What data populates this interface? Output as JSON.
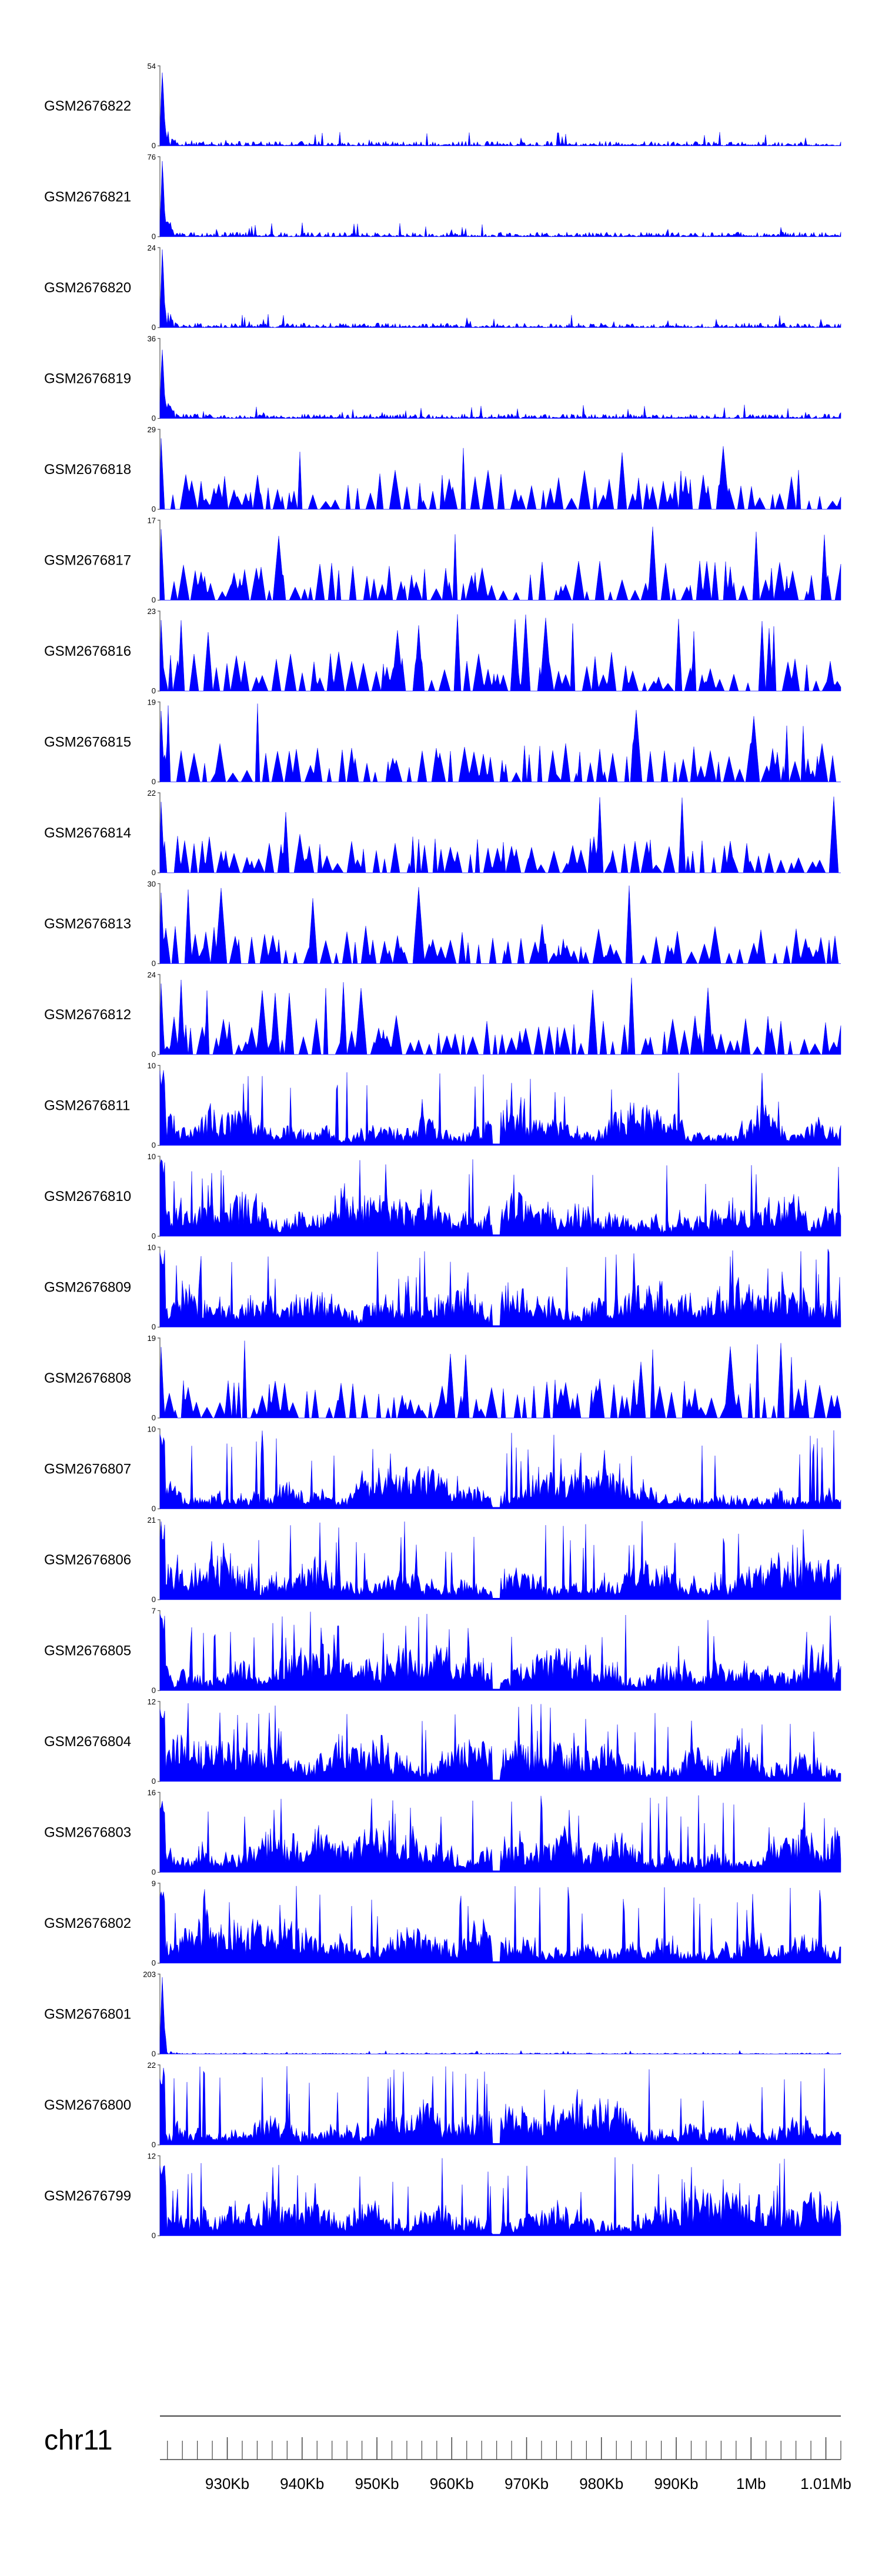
{
  "chart_data": {
    "type": "area",
    "chromosome": "chr11",
    "color": "#0000ff",
    "axis_color": "#444444",
    "x_axis": {
      "range_kb": [
        921,
        1012
      ],
      "major_ticks_kb": [
        930,
        940,
        950,
        960,
        970,
        980,
        990,
        1000,
        1010
      ],
      "tick_labels": [
        "930Kb",
        "940Kb",
        "950Kb",
        "960Kb",
        "970Kb",
        "980Kb",
        "990Kb",
        "1Mb",
        "1.01Mb"
      ],
      "minor_tick_step_kb": 2
    },
    "tracks": [
      {
        "name": "GSM2676822",
        "ymin": 0,
        "ymax": 54,
        "profile": "peak_start"
      },
      {
        "name": "GSM2676821",
        "ymin": 0,
        "ymax": 76,
        "profile": "peak_start"
      },
      {
        "name": "GSM2676820",
        "ymin": 0,
        "ymax": 24,
        "profile": "peak_start"
      },
      {
        "name": "GSM2676819",
        "ymin": 0,
        "ymax": 36,
        "profile": "peak_start"
      },
      {
        "name": "GSM2676818",
        "ymin": 0,
        "ymax": 29,
        "profile": "sparse"
      },
      {
        "name": "GSM2676817",
        "ymin": 0,
        "ymax": 17,
        "profile": "sparse"
      },
      {
        "name": "GSM2676816",
        "ymin": 0,
        "ymax": 23,
        "profile": "sparse"
      },
      {
        "name": "GSM2676815",
        "ymin": 0,
        "ymax": 19,
        "profile": "sparse"
      },
      {
        "name": "GSM2676814",
        "ymin": 0,
        "ymax": 22,
        "profile": "sparse"
      },
      {
        "name": "GSM2676813",
        "ymin": 0,
        "ymax": 30,
        "profile": "sparse"
      },
      {
        "name": "GSM2676812",
        "ymin": 0,
        "ymax": 24,
        "profile": "sparse"
      },
      {
        "name": "GSM2676811",
        "ymin": 0,
        "ymax": 10,
        "profile": "dense"
      },
      {
        "name": "GSM2676810",
        "ymin": 0,
        "ymax": 10,
        "profile": "dense"
      },
      {
        "name": "GSM2676809",
        "ymin": 0,
        "ymax": 10,
        "profile": "dense"
      },
      {
        "name": "GSM2676808",
        "ymin": 0,
        "ymax": 19,
        "profile": "sparse"
      },
      {
        "name": "GSM2676807",
        "ymin": 0,
        "ymax": 10,
        "profile": "dense"
      },
      {
        "name": "GSM2676806",
        "ymin": 0,
        "ymax": 21,
        "profile": "dense"
      },
      {
        "name": "GSM2676805",
        "ymin": 0,
        "ymax": 7,
        "profile": "dense"
      },
      {
        "name": "GSM2676804",
        "ymin": 0,
        "ymax": 12,
        "profile": "dense"
      },
      {
        "name": "GSM2676803",
        "ymin": 0,
        "ymax": 16,
        "profile": "dense"
      },
      {
        "name": "GSM2676802",
        "ymin": 0,
        "ymax": 9,
        "profile": "dense"
      },
      {
        "name": "GSM2676801",
        "ymin": 0,
        "ymax": 203,
        "profile": "peak_start"
      },
      {
        "name": "GSM2676800",
        "ymin": 0,
        "ymax": 22,
        "profile": "dense"
      },
      {
        "name": "GSM2676799",
        "ymin": 0,
        "ymax": 12,
        "profile": "dense"
      }
    ]
  }
}
